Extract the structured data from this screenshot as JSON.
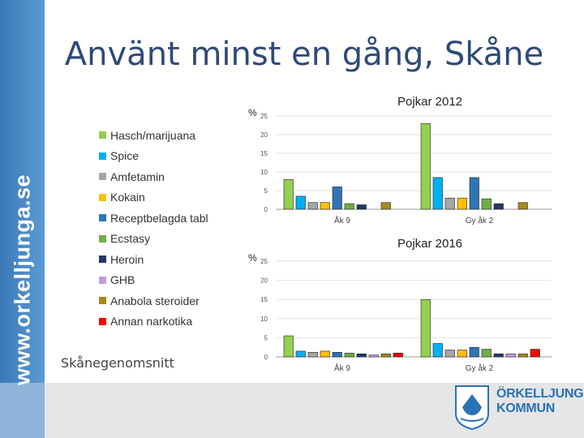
{
  "page": {
    "title": "Använt minst en gång, Skåne",
    "side_text": "www.orkelljunga.se",
    "footer_label": "Skånegenomsnitt",
    "logo_line1": "ÖRKELLJUNGA",
    "logo_line2": "KOMMUN"
  },
  "colors": {
    "accent": "#5b9bd5",
    "title": "#2f4a78"
  },
  "legend": {
    "items": [
      {
        "label": "Hasch/marijuana",
        "color": "#92d050"
      },
      {
        "label": "Spice",
        "color": "#00b0f0"
      },
      {
        "label": "Amfetamin",
        "color": "#a6a6a6"
      },
      {
        "label": "Kokain",
        "color": "#ffc000"
      },
      {
        "label": "Receptbelagda tabl",
        "color": "#2e75b6"
      },
      {
        "label": "Ecstasy",
        "color": "#70ad47"
      },
      {
        "label": "Heroin",
        "color": "#1f3864"
      },
      {
        "label": "GHB",
        "color": "#c59be0"
      },
      {
        "label": "Anabola steroider",
        "color": "#a6891a"
      },
      {
        "label": "Annan narkotika",
        "color": "#ff0000"
      }
    ]
  },
  "chart_data": [
    {
      "type": "bar",
      "title": "Pojkar 2012",
      "ylabel": "%",
      "ylim": [
        0,
        25
      ],
      "yticks": [
        "0",
        "5",
        "10",
        "15",
        "20",
        "25"
      ],
      "categories": [
        "Åk 9",
        "Gy åk 2"
      ],
      "grid": true,
      "series": [
        {
          "name": "Hasch/marijuana",
          "values": [
            8,
            23
          ]
        },
        {
          "name": "Spice",
          "values": [
            3.5,
            8.5
          ]
        },
        {
          "name": "Amfetamin",
          "values": [
            1.8,
            3
          ]
        },
        {
          "name": "Kokain",
          "values": [
            1.8,
            3
          ]
        },
        {
          "name": "Receptbelagda tabl",
          "values": [
            6,
            8.5
          ]
        },
        {
          "name": "Ecstasy",
          "values": [
            1.5,
            2.8
          ]
        },
        {
          "name": "Heroin",
          "values": [
            1.2,
            1.5
          ]
        },
        {
          "name": "GHB",
          "values": [
            0,
            0
          ]
        },
        {
          "name": "Anabola steroider",
          "values": [
            1.8,
            1.8
          ]
        },
        {
          "name": "Annan narkotika",
          "values": [
            0,
            0
          ]
        }
      ]
    },
    {
      "type": "bar",
      "title": "Pojkar 2016",
      "ylabel": "%",
      "ylim": [
        0,
        25
      ],
      "yticks": [
        "0",
        "5",
        "10",
        "15",
        "20",
        "25"
      ],
      "categories": [
        "Åk 9",
        "Gy åk 2"
      ],
      "grid": true,
      "series": [
        {
          "name": "Hasch/marijuana",
          "values": [
            5.5,
            15
          ]
        },
        {
          "name": "Spice",
          "values": [
            1.5,
            3.5
          ]
        },
        {
          "name": "Amfetamin",
          "values": [
            1.2,
            1.8
          ]
        },
        {
          "name": "Kokain",
          "values": [
            1.5,
            1.8
          ]
        },
        {
          "name": "Receptbelagda tabl",
          "values": [
            1.2,
            2.5
          ]
        },
        {
          "name": "Ecstasy",
          "values": [
            1,
            2
          ]
        },
        {
          "name": "Heroin",
          "values": [
            0.8,
            0.8
          ]
        },
        {
          "name": "GHB",
          "values": [
            0.5,
            0.8
          ]
        },
        {
          "name": "Anabola steroider",
          "values": [
            0.8,
            0.8
          ]
        },
        {
          "name": "Annan narkotika",
          "values": [
            1,
            2
          ]
        }
      ]
    }
  ]
}
